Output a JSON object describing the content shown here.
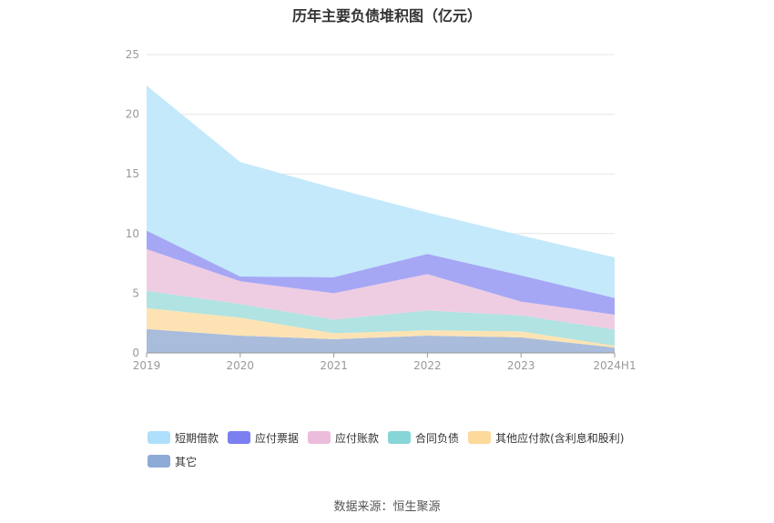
{
  "chart_data": {
    "type": "area",
    "stacked": true,
    "title": "历年主要负债堆积图（亿元）",
    "categories": [
      "2019",
      "2020",
      "2021",
      "2022",
      "2023",
      "2024H1"
    ],
    "ylim": [
      0,
      25
    ],
    "yticks": [
      "0",
      "5",
      "10",
      "15",
      "20",
      "25"
    ],
    "grid": true,
    "legend_position": "bottom",
    "series": [
      {
        "name": "其它",
        "color": "#a9bcdc",
        "values": [
          2.0,
          1.45,
          1.15,
          1.45,
          1.3,
          0.45
        ]
      },
      {
        "name": "其他应付款(含利息和股利)",
        "color": "#fde3b4",
        "values": [
          1.75,
          1.5,
          0.5,
          0.45,
          0.5,
          0.15
        ]
      },
      {
        "name": "合同负债",
        "color": "#b0e3e1",
        "values": [
          1.45,
          1.15,
          1.15,
          1.65,
          1.35,
          1.35
        ]
      },
      {
        "name": "应付账款",
        "color": "#eecde3",
        "values": [
          3.5,
          1.9,
          2.2,
          3.05,
          1.15,
          1.25
        ]
      },
      {
        "name": "应付票据",
        "color": "#a5a7f5",
        "values": [
          1.55,
          0.4,
          1.35,
          1.7,
          2.2,
          1.4
        ]
      },
      {
        "name": "短期借款",
        "color": "#c3e9fb",
        "values": [
          12.15,
          9.6,
          7.45,
          3.45,
          3.35,
          3.4
        ]
      }
    ]
  },
  "legend": [
    {
      "name": "短期借款",
      "color": "#aee0fb"
    },
    {
      "name": "应付票据",
      "color": "#7b7ff0"
    },
    {
      "name": "应付账款",
      "color": "#ebbcdc"
    },
    {
      "name": "合同负债",
      "color": "#87d6d7"
    },
    {
      "name": "其他应付款(含利息和股利)",
      "color": "#fdd99a"
    },
    {
      "name": "其它",
      "color": "#8eaad7"
    }
  ],
  "source": "数据来源：恒生聚源"
}
